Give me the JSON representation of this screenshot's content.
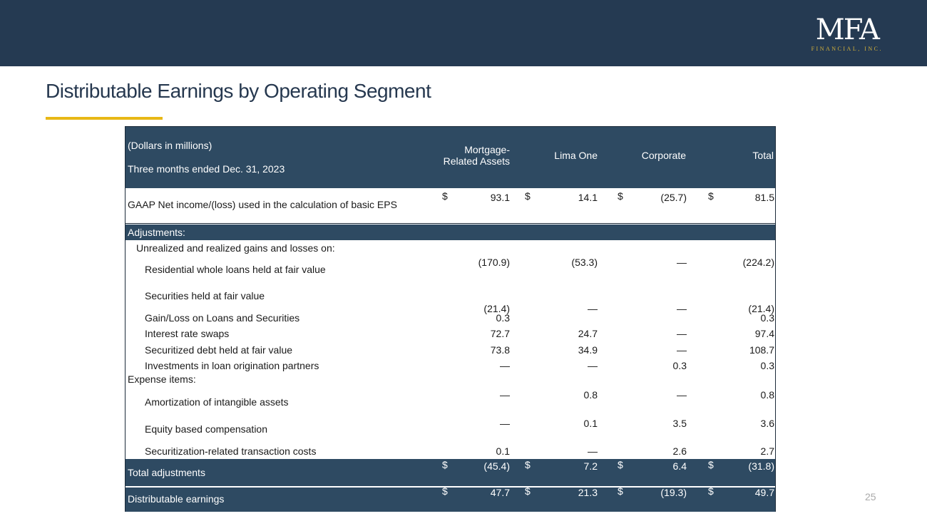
{
  "header": {
    "logo_main": "MFA",
    "logo_sub": "FINANCIAL, INC."
  },
  "title": "Distributable Earnings by Operating Segment",
  "table": {
    "units": "(Dollars in millions)",
    "period": "Three months ended Dec. 31, 2023",
    "columns": [
      "Mortgage-\nRelated Assets",
      "Lima One",
      "Corporate",
      "Total"
    ],
    "col1_line1": "Mortgage-",
    "col1_line2": "Related Assets",
    "gaap": {
      "label": "GAAP Net income/(loss) used in the calculation of basic EPS",
      "values": [
        "93.1",
        "14.1",
        "(25.7)",
        "81.5"
      ]
    },
    "adjustments_label": "Adjustments:",
    "unrealized_label": "Unrealized and realized gains and losses on:",
    "rows": [
      {
        "label": "Residential whole loans held at fair value",
        "values": [
          "(170.9)",
          "(53.3)",
          "—",
          "(224.2)"
        ]
      },
      {
        "label": "Securities held at fair value",
        "values": [
          "(21.4)",
          "—",
          "—",
          "(21.4)"
        ]
      },
      {
        "label": "Gain/Loss on Loans and Securities",
        "values": [
          "0.3",
          "",
          "",
          "0.3"
        ]
      },
      {
        "label": "Interest rate swaps",
        "values": [
          "72.7",
          "24.7",
          "—",
          "97.4"
        ]
      },
      {
        "label": "Securitized debt held at fair value",
        "values": [
          "73.8",
          "34.9",
          "—",
          "108.7"
        ]
      },
      {
        "label": "Investments in loan origination partners",
        "values": [
          "—",
          "—",
          "0.3",
          "0.3"
        ]
      }
    ],
    "expense_label": "Expense items:",
    "expense_rows": [
      {
        "label": "Amortization of intangible assets",
        "values": [
          "—",
          "0.8",
          "—",
          "0.8"
        ]
      },
      {
        "label": "Equity based compensation",
        "values": [
          "—",
          "0.1",
          "3.5",
          "3.6"
        ]
      },
      {
        "label": "Securitization-related transaction costs",
        "values": [
          "0.1",
          "—",
          "2.6",
          "2.7"
        ]
      }
    ],
    "total_adjustments": {
      "label": "Total adjustments",
      "values": [
        "(45.4)",
        "7.2",
        "6.4",
        "(31.8)"
      ]
    },
    "distributable": {
      "label": "Distributable earnings",
      "values": [
        "47.7",
        "21.3",
        "(19.3)",
        "49.7"
      ]
    },
    "currency": "$"
  },
  "page_number": "25"
}
